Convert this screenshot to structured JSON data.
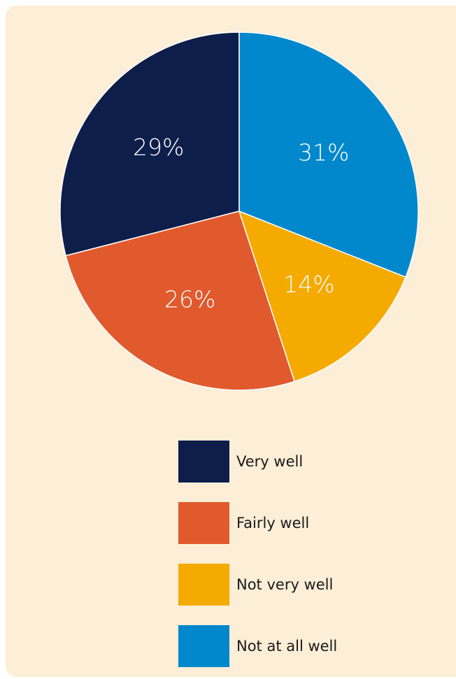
{
  "chart_data": {
    "type": "pie",
    "categories": [
      "Very well",
      "Fairly well",
      "Not very well",
      "Not at all well"
    ],
    "values": [
      29,
      26,
      14,
      31
    ],
    "value_labels": [
      "29%",
      "26%",
      "14%",
      "31%"
    ],
    "colors": [
      "#0e1e4a",
      "#e05a2e",
      "#f5aa00",
      "#0087cc"
    ]
  }
}
